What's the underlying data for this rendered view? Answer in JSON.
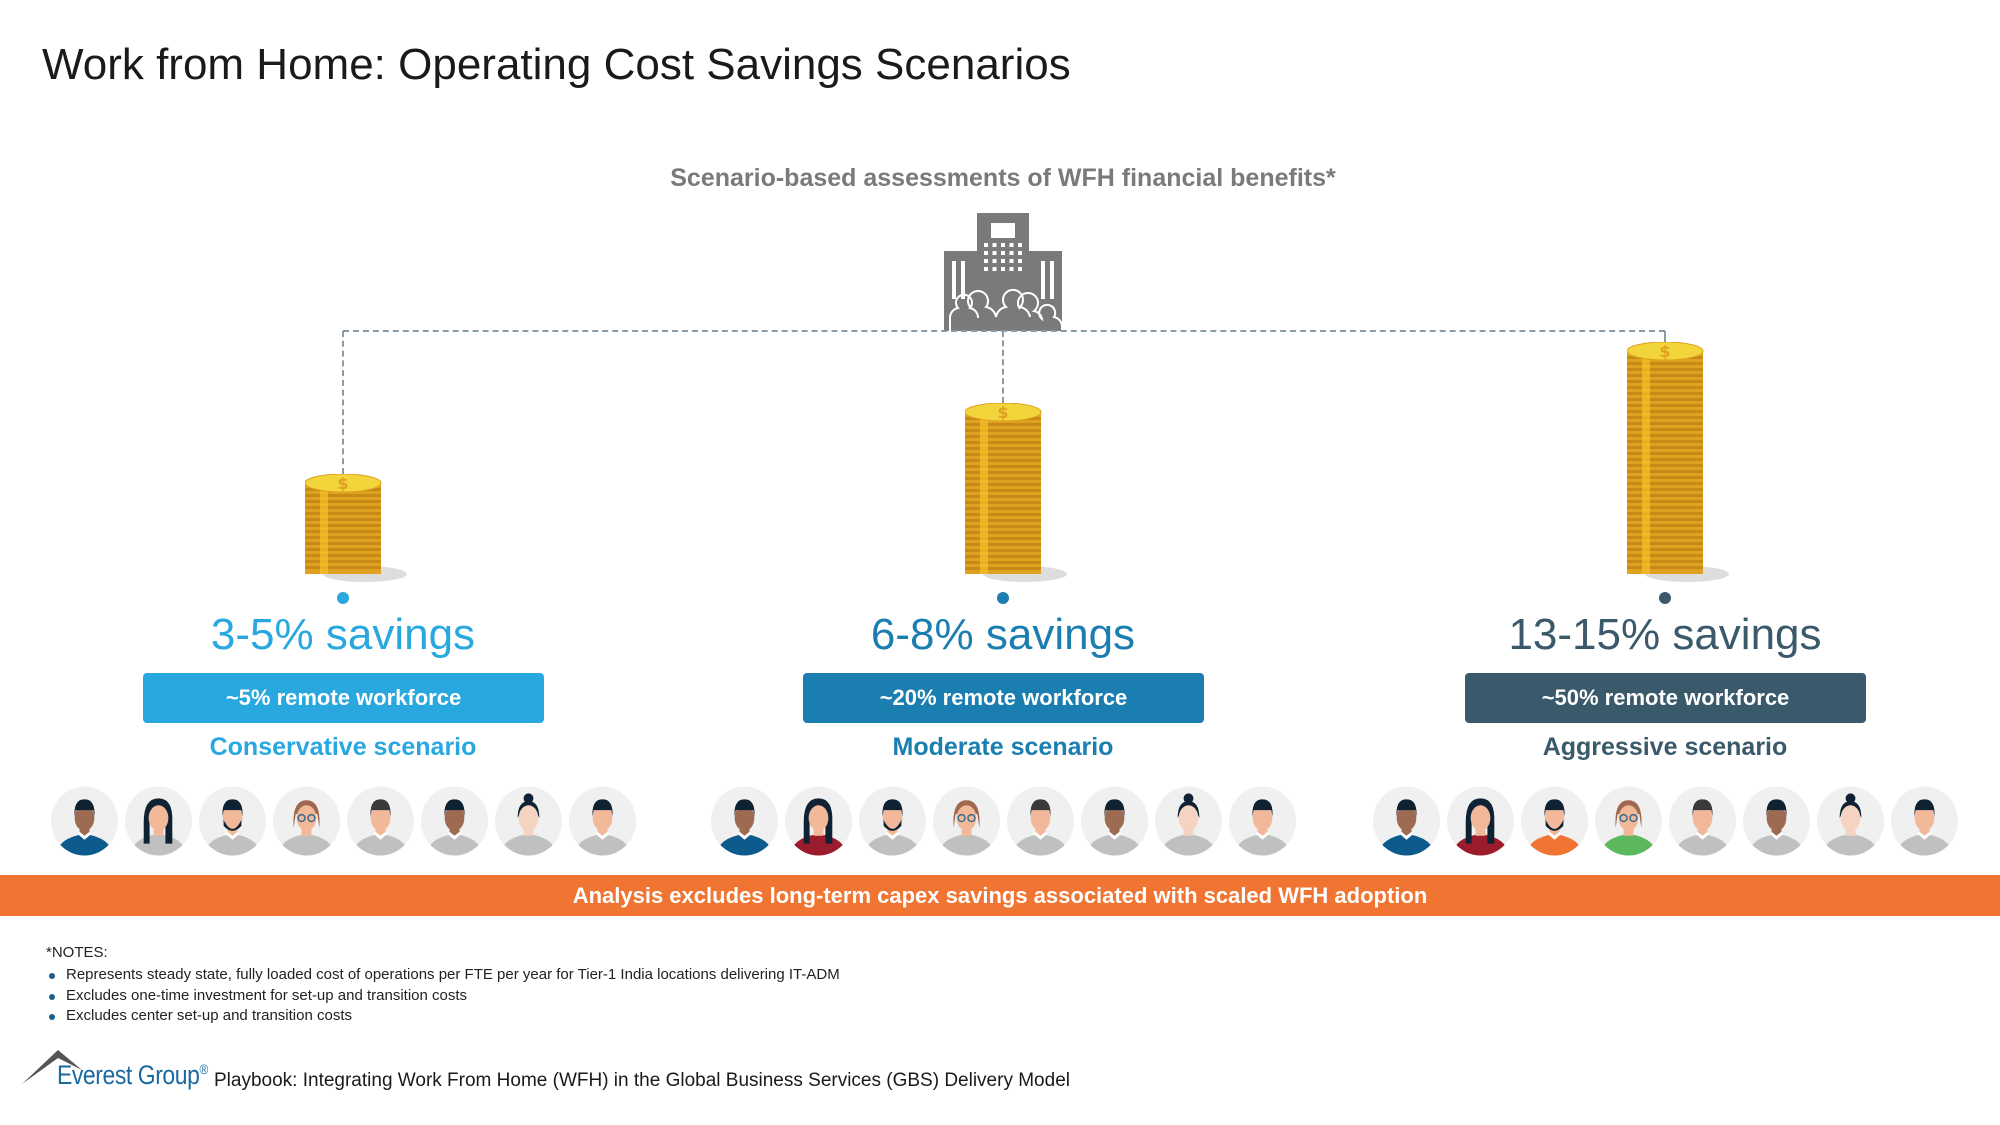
{
  "title": "Work from Home: Operating Cost Savings Scenarios",
  "subtitle": "Scenario-based assessments of WFH financial benefits*",
  "scenarios": [
    {
      "savings": "3-5% savings",
      "workforce": "~5% remote workforce",
      "name": "Conservative scenario",
      "color": "#29a8e0",
      "text_color": "#29a8e0",
      "avatar_shirts": [
        "#0d5a8c",
        "#bfc1c0",
        "#bfc1c0",
        "#bfc1c0",
        "#bfc1c0",
        "#bfc1c0",
        "#bfc1c0",
        "#bfc1c0"
      ]
    },
    {
      "savings": "6-8% savings",
      "workforce": "~20% remote workforce",
      "name": "Moderate scenario",
      "color": "#1a7fb0",
      "text_color": "#1a7fb0",
      "avatar_shirts": [
        "#0d5a8c",
        "#9b1c2c",
        "#bfc1c0",
        "#bfc1c0",
        "#bfc1c0",
        "#bfc1c0",
        "#bfc1c0",
        "#bfc1c0"
      ]
    },
    {
      "savings": "13-15% savings",
      "workforce": "~50% remote workforce",
      "name": "Aggressive scenario",
      "color": "#3a5a6b",
      "text_color": "#3a5a6b",
      "avatar_shirts": [
        "#0d5a8c",
        "#9b1c2c",
        "#f07532",
        "#5cb85c",
        "#bfc1c0",
        "#bfc1c0",
        "#bfc1c0",
        "#bfc1c0"
      ]
    }
  ],
  "banner": "Analysis excludes long-term capex savings associated with scaled WFH adoption",
  "notes": {
    "heading": "*NOTES:",
    "items": [
      "Represents steady state, fully loaded cost of operations per FTE per year for Tier-1 India locations delivering IT-ADM",
      "Excludes one-time investment for set-up and transition costs",
      "Excludes center set-up and transition costs"
    ]
  },
  "logo": {
    "name": "Everest Group",
    "mark": "®"
  },
  "footer": "Playbook: Integrating Work From Home (WFH) in the Global Business Services (GBS) Delivery Model",
  "colors": {
    "banner": "#f07532",
    "building": "#7a7a7a",
    "coin": "#e0a020"
  }
}
